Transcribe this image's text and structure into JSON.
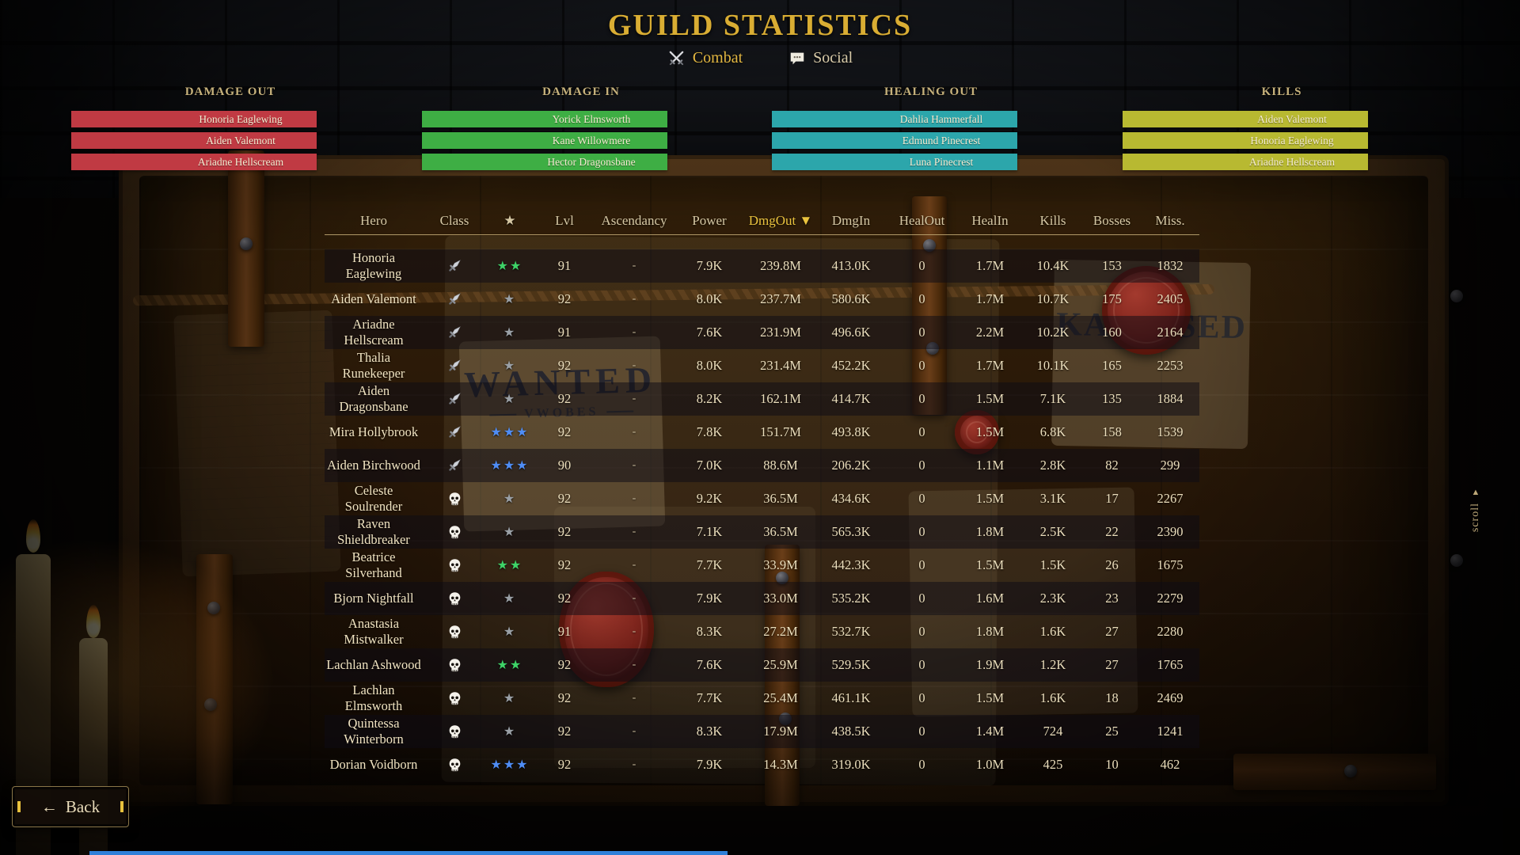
{
  "title": "GUILD STATISTICS",
  "tabs": [
    {
      "label": "Combat",
      "icon": "crossed-swords-icon",
      "active": true
    },
    {
      "label": "Social",
      "icon": "speech-bubble-icon",
      "active": false
    }
  ],
  "leaderboards": [
    {
      "title": "DAMAGE OUT",
      "color": "#c03a43",
      "entries": [
        "Honoria Eaglewing",
        "Aiden Valemont",
        "Ariadne Hellscream"
      ]
    },
    {
      "title": "DAMAGE IN",
      "color": "#3eae44",
      "entries": [
        "Yorick Elmsworth",
        "Kane Willowmere",
        "Hector Dragonsbane"
      ]
    },
    {
      "title": "HEALING OUT",
      "color": "#2ca6ab",
      "entries": [
        "Dahlia Hammerfall",
        "Edmund Pinecrest",
        "Luna Pinecrest"
      ]
    },
    {
      "title": "KILLS",
      "color": "#b8b931",
      "entries": [
        "Aiden Valemont",
        "Honoria Eaglewing",
        "Ariadne Hellscream"
      ]
    }
  ],
  "table": {
    "sort_indicator": "▼",
    "columns": [
      {
        "key": "hero",
        "label": "Hero",
        "sorted": false
      },
      {
        "key": "class",
        "label": "Class",
        "sorted": false
      },
      {
        "key": "stars",
        "label": "★",
        "sorted": false
      },
      {
        "key": "lvl",
        "label": "Lvl",
        "sorted": false
      },
      {
        "key": "ascendancy",
        "label": "Ascendancy",
        "sorted": false
      },
      {
        "key": "power",
        "label": "Power",
        "sorted": false
      },
      {
        "key": "dmg_out",
        "label": "DmgOut",
        "sorted": true
      },
      {
        "key": "dmg_in",
        "label": "DmgIn",
        "sorted": false
      },
      {
        "key": "heal_out",
        "label": "HealOut",
        "sorted": false
      },
      {
        "key": "heal_in",
        "label": "HealIn",
        "sorted": false
      },
      {
        "key": "kills",
        "label": "Kills",
        "sorted": false
      },
      {
        "key": "bosses",
        "label": "Bosses",
        "sorted": false
      },
      {
        "key": "miss",
        "label": "Miss.",
        "sorted": false
      }
    ],
    "rows": [
      {
        "hero": "Honoria Eaglewing",
        "class": "sword",
        "stars": 2,
        "star_color": "green",
        "lvl": "91",
        "ascendancy": "-",
        "power": "7.9K",
        "dmg_out": "239.8M",
        "dmg_in": "413.0K",
        "heal_out": "0",
        "heal_in": "1.7M",
        "kills": "10.4K",
        "bosses": "153",
        "miss": "1832"
      },
      {
        "hero": "Aiden Valemont",
        "class": "sword",
        "stars": 1,
        "star_color": "gray",
        "lvl": "92",
        "ascendancy": "-",
        "power": "8.0K",
        "dmg_out": "237.7M",
        "dmg_in": "580.6K",
        "heal_out": "0",
        "heal_in": "1.7M",
        "kills": "10.7K",
        "bosses": "175",
        "miss": "2405"
      },
      {
        "hero": "Ariadne Hellscream",
        "class": "sword",
        "stars": 1,
        "star_color": "gray",
        "lvl": "91",
        "ascendancy": "-",
        "power": "7.6K",
        "dmg_out": "231.9M",
        "dmg_in": "496.6K",
        "heal_out": "0",
        "heal_in": "2.2M",
        "kills": "10.2K",
        "bosses": "160",
        "miss": "2164"
      },
      {
        "hero": "Thalia Runekeeper",
        "class": "sword",
        "stars": 1,
        "star_color": "gray",
        "lvl": "92",
        "ascendancy": "-",
        "power": "8.0K",
        "dmg_out": "231.4M",
        "dmg_in": "452.2K",
        "heal_out": "0",
        "heal_in": "1.7M",
        "kills": "10.1K",
        "bosses": "165",
        "miss": "2253"
      },
      {
        "hero": "Aiden Dragonsbane",
        "class": "sword",
        "stars": 1,
        "star_color": "gray",
        "lvl": "92",
        "ascendancy": "-",
        "power": "8.2K",
        "dmg_out": "162.1M",
        "dmg_in": "414.7K",
        "heal_out": "0",
        "heal_in": "1.5M",
        "kills": "7.1K",
        "bosses": "135",
        "miss": "1884"
      },
      {
        "hero": "Mira Hollybrook",
        "class": "sword",
        "stars": 3,
        "star_color": "blue",
        "lvl": "92",
        "ascendancy": "-",
        "power": "7.8K",
        "dmg_out": "151.7M",
        "dmg_in": "493.8K",
        "heal_out": "0",
        "heal_in": "1.5M",
        "kills": "6.8K",
        "bosses": "158",
        "miss": "1539"
      },
      {
        "hero": "Aiden Birchwood",
        "class": "sword",
        "stars": 3,
        "star_color": "blue",
        "lvl": "90",
        "ascendancy": "-",
        "power": "7.0K",
        "dmg_out": "88.6M",
        "dmg_in": "206.2K",
        "heal_out": "0",
        "heal_in": "1.1M",
        "kills": "2.8K",
        "bosses": "82",
        "miss": "299"
      },
      {
        "hero": "Celeste Soulrender",
        "class": "skull",
        "stars": 1,
        "star_color": "gray",
        "lvl": "92",
        "ascendancy": "-",
        "power": "9.2K",
        "dmg_out": "36.5M",
        "dmg_in": "434.6K",
        "heal_out": "0",
        "heal_in": "1.5M",
        "kills": "3.1K",
        "bosses": "17",
        "miss": "2267"
      },
      {
        "hero": "Raven Shieldbreaker",
        "class": "skull",
        "stars": 1,
        "star_color": "gray",
        "lvl": "92",
        "ascendancy": "-",
        "power": "7.1K",
        "dmg_out": "36.5M",
        "dmg_in": "565.3K",
        "heal_out": "0",
        "heal_in": "1.8M",
        "kills": "2.5K",
        "bosses": "22",
        "miss": "2390"
      },
      {
        "hero": "Beatrice Silverhand",
        "class": "skull",
        "stars": 2,
        "star_color": "green",
        "lvl": "92",
        "ascendancy": "-",
        "power": "7.7K",
        "dmg_out": "33.9M",
        "dmg_in": "442.3K",
        "heal_out": "0",
        "heal_in": "1.5M",
        "kills": "1.5K",
        "bosses": "26",
        "miss": "1675"
      },
      {
        "hero": "Bjorn Nightfall",
        "class": "skull",
        "stars": 1,
        "star_color": "gray",
        "lvl": "92",
        "ascendancy": "-",
        "power": "7.9K",
        "dmg_out": "33.0M",
        "dmg_in": "535.2K",
        "heal_out": "0",
        "heal_in": "1.6M",
        "kills": "2.3K",
        "bosses": "23",
        "miss": "2279"
      },
      {
        "hero": "Anastasia Mistwalker",
        "class": "skull",
        "stars": 1,
        "star_color": "gray",
        "lvl": "91",
        "ascendancy": "-",
        "power": "8.3K",
        "dmg_out": "27.2M",
        "dmg_in": "532.7K",
        "heal_out": "0",
        "heal_in": "1.8M",
        "kills": "1.6K",
        "bosses": "27",
        "miss": "2280"
      },
      {
        "hero": "Lachlan Ashwood",
        "class": "skull",
        "stars": 2,
        "star_color": "green",
        "lvl": "92",
        "ascendancy": "-",
        "power": "7.6K",
        "dmg_out": "25.9M",
        "dmg_in": "529.5K",
        "heal_out": "0",
        "heal_in": "1.9M",
        "kills": "1.2K",
        "bosses": "27",
        "miss": "1765"
      },
      {
        "hero": "Lachlan Elmsworth",
        "class": "skull",
        "stars": 1,
        "star_color": "gray",
        "lvl": "92",
        "ascendancy": "-",
        "power": "7.7K",
        "dmg_out": "25.4M",
        "dmg_in": "461.1K",
        "heal_out": "0",
        "heal_in": "1.5M",
        "kills": "1.6K",
        "bosses": "18",
        "miss": "2469"
      },
      {
        "hero": "Quintessa Winterborn",
        "class": "skull",
        "stars": 1,
        "star_color": "gray",
        "lvl": "92",
        "ascendancy": "-",
        "power": "8.3K",
        "dmg_out": "17.9M",
        "dmg_in": "438.5K",
        "heal_out": "0",
        "heal_in": "1.4M",
        "kills": "724",
        "bosses": "25",
        "miss": "1241"
      },
      {
        "hero": "Dorian Voidborn",
        "class": "skull",
        "stars": 3,
        "star_color": "blue",
        "lvl": "92",
        "ascendancy": "-",
        "power": "7.9K",
        "dmg_out": "14.3M",
        "dmg_in": "319.0K",
        "heal_out": "0",
        "heal_in": "1.0M",
        "kills": "425",
        "bosses": "10",
        "miss": "462"
      }
    ]
  },
  "scroll_indicator": {
    "arrow": "▲",
    "label": "scroll"
  },
  "back_button": {
    "arrow": "←",
    "label": "Back"
  },
  "decor": {
    "wanted_poster": {
      "title": "WANTED",
      "subtitle": "VWOBES"
    },
    "torn_headline": {
      "left": "KA",
      "right": "SED"
    }
  },
  "colors": {
    "title_gold": "#d9ad33",
    "sorted_column": "#eac33e",
    "star_gray": "#9aa0a6",
    "star_green": "#3ed267",
    "star_blue": "#4f8df5",
    "bottom_strip_blue": "#2f80d9"
  }
}
